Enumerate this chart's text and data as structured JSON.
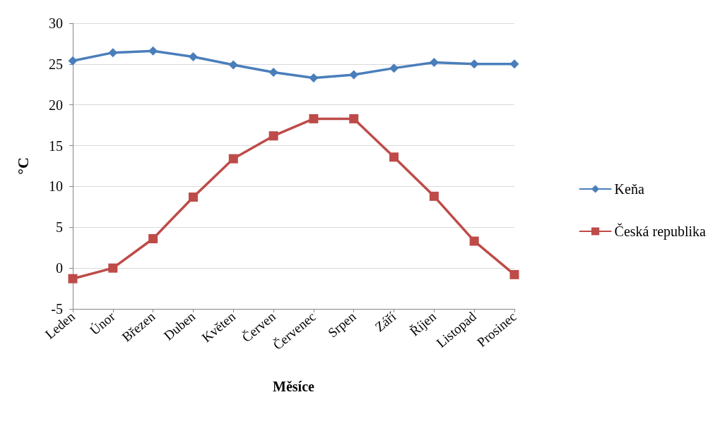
{
  "chart_data": {
    "type": "line",
    "xlabel": "Měsíce",
    "ylabel": "°C",
    "categories": [
      "Leden",
      "Únor",
      "Březen",
      "Duben",
      "Květen",
      "Červen",
      "Červenec",
      "Srpen",
      "Září",
      "Říjen",
      "Listopad",
      "Prosinec"
    ],
    "series": [
      {
        "name": "Keňa",
        "color": "#4a7ebb",
        "marker": "diamond",
        "values": [
          25.4,
          26.4,
          26.6,
          25.9,
          24.9,
          24.0,
          23.3,
          23.7,
          24.5,
          25.2,
          25.0,
          25.0
        ]
      },
      {
        "name": "Česká republika",
        "color": "#be4b48",
        "marker": "square",
        "values": [
          -1.3,
          0,
          3.6,
          8.7,
          13.4,
          16.2,
          18.3,
          18.3,
          13.6,
          8.8,
          3.3,
          -0.8
        ]
      }
    ],
    "ylim": [
      -5,
      30
    ],
    "yticks": [
      -5,
      0,
      5,
      10,
      15,
      20,
      25,
      30
    ],
    "grid": "y",
    "legend": "right",
    "line_style": "solid"
  }
}
